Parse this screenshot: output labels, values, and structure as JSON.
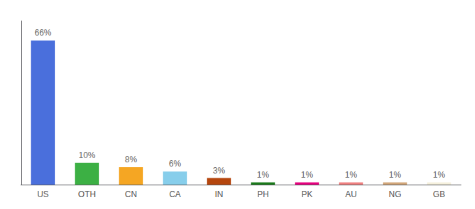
{
  "chart_data": {
    "type": "bar",
    "categories": [
      "US",
      "OTH",
      "CN",
      "CA",
      "IN",
      "PH",
      "PK",
      "AU",
      "NG",
      "GB"
    ],
    "values": [
      66,
      10,
      8,
      6,
      3,
      1,
      1,
      1,
      1,
      1
    ],
    "value_labels": [
      "66%",
      "10%",
      "8%",
      "6%",
      "3%",
      "1%",
      "1%",
      "1%",
      "1%",
      "1%"
    ],
    "data_labels": true,
    "colors": [
      "#4a6fdc",
      "#3cb044",
      "#f5a623",
      "#87ceeb",
      "#b5460e",
      "#1a7a1a",
      "#e6007e",
      "#f08080",
      "#d2a679",
      "#f5f0dc"
    ],
    "ylim": [
      0,
      75
    ],
    "tick_labels": "x",
    "grid": false
  }
}
